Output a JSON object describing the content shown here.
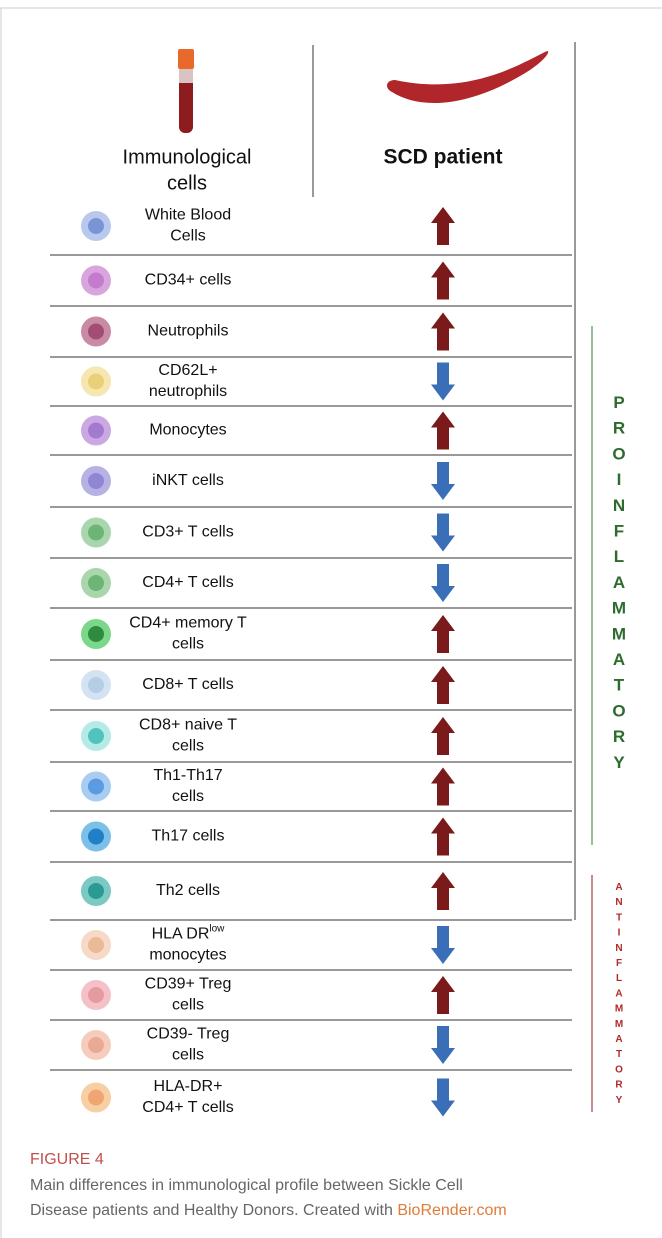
{
  "header": {
    "col1": [
      "Immunological",
      "cells"
    ],
    "col2": "SCD patient"
  },
  "rows": [
    {
      "label": [
        "White Blood",
        "Cells"
      ],
      "direction": "up"
    },
    {
      "label": [
        "CD34+ cells"
      ],
      "direction": "up"
    },
    {
      "label": [
        "Neutrophils"
      ],
      "direction": "up"
    },
    {
      "label": [
        "CD62L+",
        "neutrophils"
      ],
      "direction": "down"
    },
    {
      "label": [
        "Monocytes"
      ],
      "direction": "up"
    },
    {
      "label": [
        "iNKT cells"
      ],
      "direction": "down"
    },
    {
      "label": [
        "CD3+ T cells"
      ],
      "direction": "down"
    },
    {
      "label": [
        "CD4+ T cells"
      ],
      "direction": "down"
    },
    {
      "label": [
        "CD4+ memory T",
        "cells"
      ],
      "direction": "up"
    },
    {
      "label": [
        "CD8+ T cells"
      ],
      "direction": "up"
    },
    {
      "label": [
        "CD8+ naive T",
        "cells"
      ],
      "direction": "up"
    },
    {
      "label": [
        "Th1-Th17",
        "cells"
      ],
      "direction": "up"
    },
    {
      "label": [
        "Th17 cells"
      ],
      "direction": "up"
    },
    {
      "label": [
        "Th2 cells"
      ],
      "direction": "up"
    },
    {
      "label": [
        "HLA DR",
        "monocytes"
      ],
      "superscript": "low",
      "direction": "down"
    },
    {
      "label": [
        "CD39+ Treg",
        "cells"
      ],
      "direction": "up"
    },
    {
      "label": [
        "CD39- Treg",
        "cells"
      ],
      "direction": "down"
    },
    {
      "label": [
        "HLA-DR+",
        "CD4+ T cells"
      ],
      "direction": "down"
    }
  ],
  "side_labels": {
    "proinflammatory": "PROINFLAMMATORY",
    "antiinflammatory": "ANTINFLAMMATORY"
  },
  "caption": {
    "title": "FIGURE 4",
    "lines": [
      "Main differences in immunological profile between Sickle Cell",
      "Disease patients and Healthy Donors. Created with "
    ],
    "link": "BioRender.com"
  }
}
